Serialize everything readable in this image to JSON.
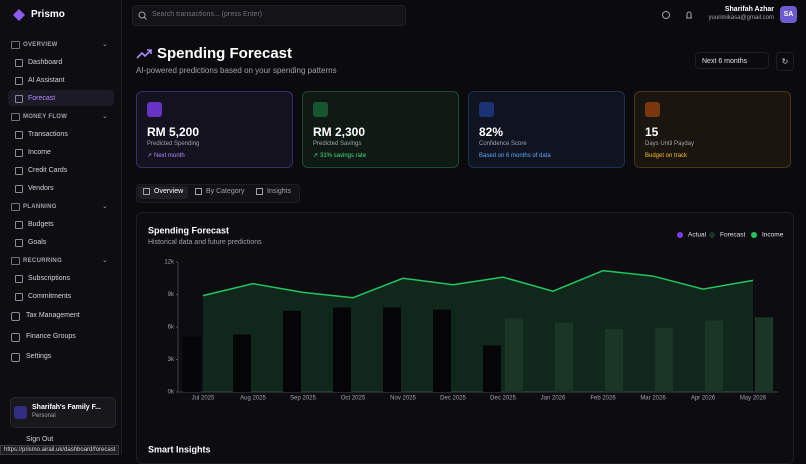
{
  "app": {
    "name": "Prismo"
  },
  "search": {
    "placeholder": "Search transactions... (press Enter)"
  },
  "user": {
    "name": "Sharifah Azhar",
    "email": "yuurimikasa@gmail.com",
    "initials": "SA"
  },
  "sidebar": {
    "sections": [
      {
        "title": "OVERVIEW",
        "items": [
          "Dashboard",
          "AI Assistant",
          "Forecast"
        ]
      },
      {
        "title": "MONEY FLOW",
        "items": [
          "Transactions",
          "Income",
          "Credit Cards",
          "Vendors"
        ]
      },
      {
        "title": "PLANNING",
        "items": [
          "Budgets",
          "Goals"
        ]
      },
      {
        "title": "RECURRING",
        "items": [
          "Subscriptions",
          "Commitments"
        ]
      }
    ],
    "extra": [
      "Tax Management",
      "Finance Groups",
      "Settings"
    ],
    "group": {
      "name": "Sharifah's Family F...",
      "role": "Personal"
    },
    "signout": "Sign Out"
  },
  "status_url": "https://prismo.airail.uk/dashboard/forecast",
  "page": {
    "title": "Spending Forecast",
    "subtitle": "AI-powered predictions based on your spending patterns",
    "period": "Next 6 months"
  },
  "cards": [
    {
      "value": "RM 5,200",
      "label": "Predicted Spending",
      "note": "Next month"
    },
    {
      "value": "RM 2,300",
      "label": "Predicted Savings",
      "note": "31% savings rate"
    },
    {
      "value": "82%",
      "label": "Confidence Score",
      "note": "Based on 6 months of data"
    },
    {
      "value": "15",
      "label": "Days Until Payday",
      "note": "Budget on track"
    }
  ],
  "tabs": [
    "Overview",
    "By Category",
    "Insights"
  ],
  "chart_data": {
    "type": "bar",
    "title": "Spending Forecast",
    "subtitle": "Historical data and future predictions",
    "categories": [
      "Jul 2025",
      "Aug 2025",
      "Sep 2025",
      "Oct 2025",
      "Nov 2025",
      "Dec 2025",
      "Dec 2025",
      "Jan 2026",
      "Feb 2026",
      "Mar 2026",
      "Apr 2026",
      "May 2026"
    ],
    "series": [
      {
        "name": "Actual",
        "color": "#050507",
        "values": [
          5100,
          5300,
          7500,
          7800,
          7800,
          7600,
          4300,
          null,
          null,
          null,
          null,
          null
        ]
      },
      {
        "name": "Forecast",
        "color": "#1b3527",
        "values": [
          null,
          null,
          null,
          null,
          null,
          null,
          6800,
          6400,
          5800,
          5900,
          6600,
          6900
        ]
      },
      {
        "name": "Income",
        "type": "area",
        "color": "#22c55e",
        "values": [
          8900,
          10000,
          9200,
          8700,
          10500,
          9900,
          10600,
          9300,
          11200,
          10700,
          9500,
          10300
        ]
      }
    ],
    "ylim": [
      0,
      12000
    ],
    "yticks": [
      {
        "value": 0,
        "label": "0k"
      },
      {
        "value": 3000,
        "label": "3k"
      },
      {
        "value": 6000,
        "label": "6k"
      },
      {
        "value": 9000,
        "label": "9k"
      },
      {
        "value": 12000,
        "label": "12k"
      }
    ],
    "legend": "top-right"
  },
  "insights_title": "Smart Insights"
}
